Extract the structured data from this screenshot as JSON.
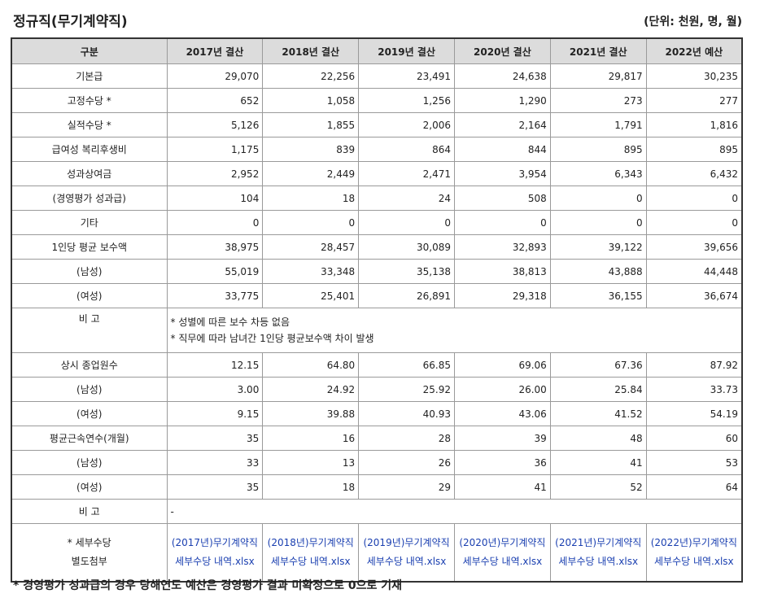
{
  "title": "정규직(무기계약직)",
  "unit": "(단위: 천원, 명, 월)",
  "header": [
    "구분",
    "2017년 결산",
    "2018년 결산",
    "2019년 결산",
    "2020년 결산",
    "2021년 결산",
    "2022년 예산"
  ],
  "rows1": [
    {
      "label": "기본급",
      "values": [
        "29,070",
        "22,256",
        "23,491",
        "24,638",
        "29,817",
        "30,235"
      ]
    },
    {
      "label": "고정수당 *",
      "values": [
        "652",
        "1,058",
        "1,256",
        "1,290",
        "273",
        "277"
      ]
    },
    {
      "label": "실적수당 *",
      "values": [
        "5,126",
        "1,855",
        "2,006",
        "2,164",
        "1,791",
        "1,816"
      ]
    },
    {
      "label": "급여성 복리후생비",
      "values": [
        "1,175",
        "839",
        "864",
        "844",
        "895",
        "895"
      ]
    },
    {
      "label": "성과상여금",
      "values": [
        "2,952",
        "2,449",
        "2,471",
        "3,954",
        "6,343",
        "6,432"
      ]
    },
    {
      "label": "(경영평가 성과급)",
      "values": [
        "104",
        "18",
        "24",
        "508",
        "0",
        "0"
      ]
    },
    {
      "label": "기타",
      "values": [
        "0",
        "0",
        "0",
        "0",
        "0",
        "0"
      ]
    },
    {
      "label": "1인당 평균 보수액",
      "values": [
        "38,975",
        "28,457",
        "30,089",
        "32,893",
        "39,122",
        "39,656"
      ]
    },
    {
      "label": "(남성)",
      "values": [
        "55,019",
        "33,348",
        "35,138",
        "38,813",
        "43,888",
        "44,448"
      ]
    },
    {
      "label": "(여성)",
      "values": [
        "33,775",
        "25,401",
        "26,891",
        "29,318",
        "36,155",
        "36,674"
      ]
    }
  ],
  "note1": {
    "label": "비 고",
    "line1": "* 성별에 따른 보수 차등 없음",
    "line2": "* 직무에 따라 남녀간 1인당 평균보수액 차이 발생"
  },
  "rows2": [
    {
      "label": "상시 종업원수",
      "values": [
        "12.15",
        "64.80",
        "66.85",
        "69.06",
        "67.36",
        "87.92"
      ]
    },
    {
      "label": "(남성)",
      "values": [
        "3.00",
        "24.92",
        "25.92",
        "26.00",
        "25.84",
        "33.73"
      ]
    },
    {
      "label": "(여성)",
      "values": [
        "9.15",
        "39.88",
        "40.93",
        "43.06",
        "41.52",
        "54.19"
      ]
    },
    {
      "label": "평균근속연수(개월)",
      "values": [
        "35",
        "16",
        "28",
        "39",
        "48",
        "60"
      ]
    },
    {
      "label": "(남성)",
      "values": [
        "33",
        "13",
        "26",
        "36",
        "41",
        "53"
      ]
    },
    {
      "label": "(여성)",
      "values": [
        "35",
        "18",
        "29",
        "41",
        "52",
        "64"
      ]
    }
  ],
  "note2": {
    "label": "비 고",
    "text": "-"
  },
  "attach": {
    "label_line1": "* 세부수당",
    "label_line2": "별도첨부",
    "files": [
      "(2017년)무기계약직 세부수당 내역.xlsx",
      "(2018년)무기계약직 세부수당 내역.xlsx",
      "(2019년)무기계약직 세부수당 내역.xlsx",
      "(2020년)무기계약직 세부수당 내역.xlsx",
      "(2021년)무기계약직 세부수당 내역.xlsx",
      "(2022년)무기계약직 세부수당 내역.xlsx"
    ]
  },
  "footer": "* 경영평가 성과급의 경우 당해연도 예산은 경영평가 결과 미확정으로 0으로 기재",
  "colors": {
    "header_bg": "#dcdcdc",
    "link": "#1a3fb0"
  }
}
